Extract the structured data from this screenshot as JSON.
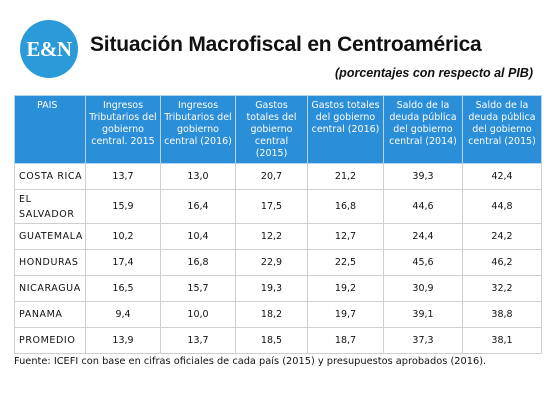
{
  "header": {
    "logo_text": "E&N",
    "title": "Situación Macrofiscal en Centroamérica",
    "subtitle": "(porcentajes con respecto al PIB)"
  },
  "chart_data": {
    "type": "table",
    "title": "Situación Macrofiscal en Centroamérica",
    "subtitle": "(porcentajes con respecto al PIB)",
    "columns": [
      "PAIS",
      "Ingresos Tributarios del gobierno central. 2015",
      "Ingresos Tributarios del gobierno central (2016)",
      "Gastos totales del gobierno central (2015)",
      "Gastos totales del gobierno central (2016)",
      "Saldo de la deuda pública del gobierno central (2014)",
      "Saldo de la deuda pública del gobierno central (2015)"
    ],
    "rows": [
      {
        "country": "COSTA RICA",
        "values": [
          "13,7",
          "13,0",
          "20,7",
          "21,2",
          "39,3",
          "42,4"
        ]
      },
      {
        "country": "EL SALVADOR",
        "values": [
          "15,9",
          "16,4",
          "17,5",
          "16,8",
          "44,6",
          "44,8"
        ]
      },
      {
        "country": "GUATEMALA",
        "values": [
          "10,2",
          "10,4",
          "12,2",
          "12,7",
          "24,4",
          "24,2"
        ]
      },
      {
        "country": "HONDURAS",
        "values": [
          "17,4",
          "16,8",
          "22,9",
          "22,5",
          "45,6",
          "46,2"
        ]
      },
      {
        "country": "NICARAGUA",
        "values": [
          "16,5",
          "15,7",
          "19,3",
          "19,2",
          "30,9",
          "32,2"
        ]
      },
      {
        "country": "PANAMA",
        "values": [
          "9,4",
          "10,0",
          "18,2",
          "19,7",
          "39,1",
          "38,8"
        ]
      },
      {
        "country": "PROMEDIO",
        "values": [
          "13,9",
          "13,7",
          "18,5",
          "18,7",
          "37,3",
          "38,1"
        ]
      }
    ]
  },
  "footnote": "Fuente: ICEFI con base en cifras oficiales de cada país (2015) y presupuestos aprobados (2016).",
  "colors": {
    "header_bg": "#2a8ed8",
    "logo_bg": "#2a9ad8"
  }
}
